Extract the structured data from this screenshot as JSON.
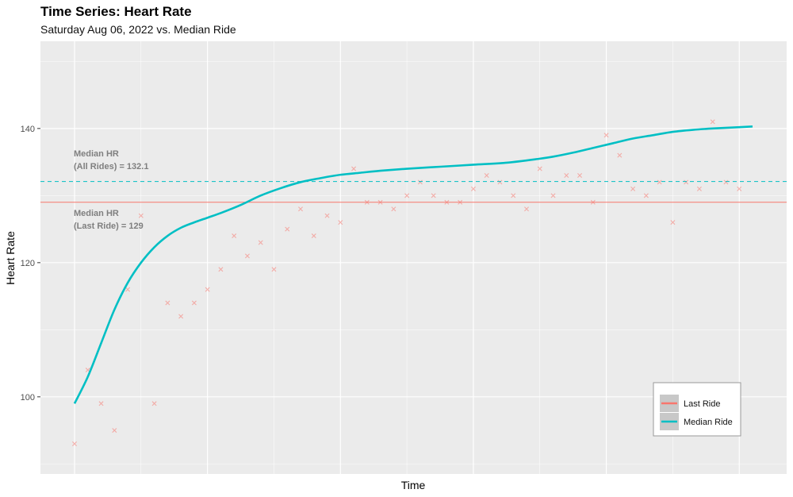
{
  "chart_data": {
    "type": "line",
    "title": "Time Series: Heart Rate",
    "subtitle": "Saturday Aug 06, 2022 vs. Median Ride",
    "xlabel": "Time",
    "ylabel": "Heart Rate",
    "x_tick_labels": false,
    "ylim": [
      88.5,
      153
    ],
    "yticks": [
      100,
      120,
      140
    ],
    "grid": true,
    "legend": {
      "placement": "bottom-right",
      "entries": [
        "Last Ride",
        "Median Ride"
      ]
    },
    "colors": {
      "last_ride": "#F8766D",
      "median_ride": "#00BFC4",
      "panel": "#EBEBEB",
      "grid": "#FFFFFF"
    },
    "reference_lines": [
      {
        "series": "Median Ride",
        "value": 132.1,
        "style": "dashed",
        "label_line1": "Median HR",
        "label_line2": "(All Rides) =  132.1"
      },
      {
        "series": "Last Ride",
        "value": 129,
        "style": "solid",
        "label_line1": "Median HR",
        "label_line2": "(Last Ride) =  129"
      }
    ],
    "series": [
      {
        "name": "Median Ride",
        "style": "smooth-line",
        "x": [
          0,
          2,
          4,
          6,
          8,
          10,
          12,
          14,
          16,
          18,
          20,
          22,
          25,
          28,
          31,
          34,
          37,
          40,
          43,
          46,
          50,
          55,
          60,
          65,
          70,
          72,
          75,
          78,
          81,
          84,
          87,
          90,
          93,
          96,
          100,
          102
        ],
        "y": [
          99,
          103,
          108,
          113,
          117,
          120,
          122.3,
          124,
          125.2,
          126,
          126.7,
          127.4,
          128.6,
          130,
          131.1,
          132,
          132.6,
          133.1,
          133.4,
          133.7,
          134,
          134.3,
          134.6,
          134.9,
          135.5,
          135.8,
          136.4,
          137.1,
          137.8,
          138.5,
          139,
          139.5,
          139.8,
          140,
          140.2,
          140.3
        ]
      },
      {
        "name": "Last Ride",
        "style": "scatter",
        "x": [
          0,
          2,
          4,
          6,
          8,
          10,
          12,
          14,
          16,
          18,
          20,
          22,
          24,
          26,
          28,
          30,
          32,
          34,
          36,
          38,
          40,
          42,
          44,
          46,
          48,
          50,
          52,
          54,
          56,
          58,
          60,
          62,
          64,
          66,
          68,
          70,
          72,
          74,
          76,
          78,
          80,
          82,
          84,
          86,
          88,
          90,
          92,
          94,
          96,
          98,
          100
        ],
        "y": [
          93,
          104,
          99,
          95,
          116,
          127,
          99,
          114,
          112,
          114,
          116,
          119,
          124,
          121,
          123,
          119,
          125,
          128,
          124,
          127,
          126,
          134,
          129,
          129,
          128,
          130,
          132,
          130,
          129,
          129,
          131,
          133,
          132,
          130,
          128,
          134,
          130,
          133,
          133,
          129,
          139,
          136,
          131,
          130,
          132,
          126,
          132,
          131,
          141,
          132,
          131
        ]
      }
    ]
  }
}
